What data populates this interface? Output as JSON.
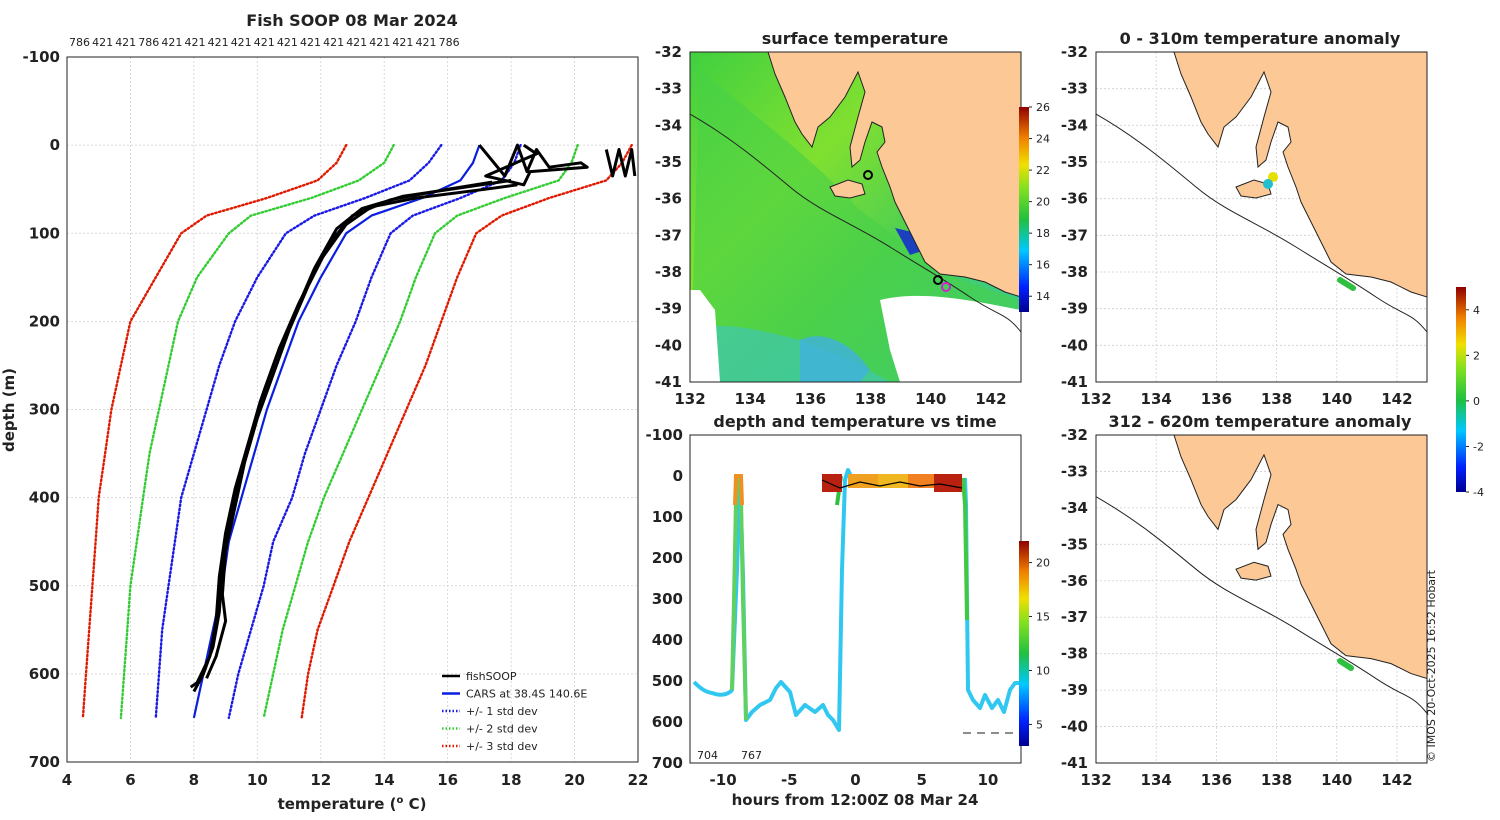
{
  "colors": {
    "fish": "#000000",
    "cars": "#0a1ee0",
    "std1": "#1a1ae6",
    "std2": "#33cc33",
    "std3": "#e01a00",
    "land": "#fbc896",
    "magenta": "#d020d0"
  },
  "chart_data": [
    {
      "id": "profile",
      "type": "line",
      "title": "Fish SOOP 08 Mar 2024",
      "top_labels": [
        "786",
        "421",
        "421",
        "786",
        "421",
        "421",
        "421",
        "421",
        "421",
        "421",
        "421",
        "421",
        "421",
        "421",
        "421",
        "421",
        "786"
      ],
      "xlabel": "temperature (",
      "xlabel_sup": "o",
      "xlabel_end": " C)",
      "ylabel": "depth (m)",
      "xlim": [
        4,
        22
      ],
      "ylim": [
        -100,
        700
      ],
      "xticks": [
        4,
        6,
        8,
        10,
        12,
        14,
        16,
        18,
        20,
        22
      ],
      "yticks": [
        -100,
        0,
        100,
        200,
        300,
        400,
        500,
        600,
        700
      ],
      "legend": [
        {
          "label": "fishSOOP",
          "key": "fish"
        },
        {
          "label": "CARS at 38.4S 140.6E",
          "key": "cars"
        },
        {
          "label": "+/- 1 std dev",
          "key": "std1"
        },
        {
          "label": "+/- 2 std dev",
          "key": "std2"
        },
        {
          "label": "+/- 3 std dev",
          "key": "std3"
        }
      ],
      "series": [
        {
          "name": "CARS",
          "key": "cars",
          "style": "solid",
          "points": [
            [
              17.0,
              0
            ],
            [
              16.8,
              20
            ],
            [
              16.4,
              40
            ],
            [
              15.2,
              60
            ],
            [
              13.6,
              80
            ],
            [
              12.8,
              100
            ],
            [
              12.0,
              150
            ],
            [
              11.3,
              200
            ],
            [
              10.8,
              250
            ],
            [
              10.3,
              300
            ],
            [
              9.9,
              350
            ],
            [
              9.5,
              400
            ],
            [
              9.1,
              450
            ],
            [
              8.9,
              500
            ],
            [
              8.6,
              550
            ],
            [
              8.3,
              600
            ],
            [
              8.0,
              650
            ]
          ]
        },
        {
          "name": "-1 std",
          "key": "std1",
          "style": "dot",
          "points": [
            [
              15.8,
              0
            ],
            [
              15.4,
              20
            ],
            [
              14.8,
              40
            ],
            [
              13.4,
              60
            ],
            [
              11.8,
              80
            ],
            [
              10.9,
              100
            ],
            [
              10.0,
              150
            ],
            [
              9.3,
              200
            ],
            [
              8.8,
              250
            ],
            [
              8.4,
              300
            ],
            [
              8.0,
              350
            ],
            [
              7.6,
              400
            ],
            [
              7.4,
              450
            ],
            [
              7.2,
              500
            ],
            [
              7.0,
              550
            ],
            [
              6.9,
              600
            ],
            [
              6.8,
              650
            ]
          ]
        },
        {
          "name": "+1 std",
          "key": "std1",
          "style": "dot",
          "points": [
            [
              18.3,
              0
            ],
            [
              18.1,
              20
            ],
            [
              17.7,
              40
            ],
            [
              16.4,
              60
            ],
            [
              14.9,
              80
            ],
            [
              14.2,
              100
            ],
            [
              13.6,
              150
            ],
            [
              13.1,
              200
            ],
            [
              12.5,
              250
            ],
            [
              12.0,
              300
            ],
            [
              11.5,
              350
            ],
            [
              11.1,
              400
            ],
            [
              10.5,
              450
            ],
            [
              10.2,
              500
            ],
            [
              9.8,
              550
            ],
            [
              9.4,
              600
            ],
            [
              9.1,
              650
            ]
          ]
        },
        {
          "name": "-2 std",
          "key": "std2",
          "style": "dot",
          "points": [
            [
              14.3,
              0
            ],
            [
              14.0,
              20
            ],
            [
              13.2,
              40
            ],
            [
              11.7,
              60
            ],
            [
              9.8,
              80
            ],
            [
              9.1,
              100
            ],
            [
              8.1,
              150
            ],
            [
              7.5,
              200
            ],
            [
              7.2,
              250
            ],
            [
              6.9,
              300
            ],
            [
              6.6,
              350
            ],
            [
              6.4,
              400
            ],
            [
              6.2,
              450
            ],
            [
              6.0,
              500
            ],
            [
              5.9,
              550
            ],
            [
              5.8,
              600
            ],
            [
              5.7,
              650
            ]
          ]
        },
        {
          "name": "+2 std",
          "key": "std2",
          "style": "dot",
          "points": [
            [
              20.1,
              0
            ],
            [
              19.9,
              20
            ],
            [
              19.5,
              40
            ],
            [
              17.8,
              60
            ],
            [
              16.3,
              80
            ],
            [
              15.6,
              100
            ],
            [
              15.0,
              150
            ],
            [
              14.5,
              200
            ],
            [
              13.9,
              250
            ],
            [
              13.3,
              300
            ],
            [
              12.7,
              350
            ],
            [
              12.1,
              400
            ],
            [
              11.6,
              450
            ],
            [
              11.2,
              500
            ],
            [
              10.8,
              550
            ],
            [
              10.5,
              600
            ],
            [
              10.2,
              650
            ]
          ]
        },
        {
          "name": "-3 std",
          "key": "std3",
          "style": "dot",
          "points": [
            [
              12.8,
              0
            ],
            [
              12.5,
              20
            ],
            [
              11.9,
              40
            ],
            [
              10.3,
              60
            ],
            [
              8.4,
              80
            ],
            [
              7.6,
              100
            ],
            [
              6.8,
              150
            ],
            [
              6.0,
              200
            ],
            [
              5.7,
              250
            ],
            [
              5.4,
              300
            ],
            [
              5.2,
              350
            ],
            [
              5.0,
              400
            ],
            [
              4.9,
              450
            ],
            [
              4.8,
              500
            ],
            [
              4.7,
              550
            ],
            [
              4.6,
              600
            ],
            [
              4.5,
              650
            ]
          ]
        },
        {
          "name": "+3 std",
          "key": "std3",
          "style": "dot",
          "points": [
            [
              21.8,
              0
            ],
            [
              21.5,
              20
            ],
            [
              21.0,
              40
            ],
            [
              19.2,
              60
            ],
            [
              17.7,
              80
            ],
            [
              16.9,
              100
            ],
            [
              16.3,
              150
            ],
            [
              15.8,
              200
            ],
            [
              15.3,
              250
            ],
            [
              14.7,
              300
            ],
            [
              14.1,
              350
            ],
            [
              13.5,
              400
            ],
            [
              12.9,
              450
            ],
            [
              12.4,
              500
            ],
            [
              11.9,
              550
            ],
            [
              11.6,
              600
            ],
            [
              11.4,
              650
            ]
          ]
        },
        {
          "name": "fishSOOP A",
          "key": "fish",
          "style": "solid",
          "points": [
            [
              18.2,
              45
            ],
            [
              17.2,
              50
            ],
            [
              15.0,
              60
            ],
            [
              13.6,
              70
            ],
            [
              12.8,
              90
            ],
            [
              12.0,
              130
            ],
            [
              11.3,
              180
            ],
            [
              10.7,
              230
            ],
            [
              10.2,
              280
            ],
            [
              9.8,
              330
            ],
            [
              9.4,
              380
            ],
            [
              9.1,
              430
            ],
            [
              8.9,
              480
            ],
            [
              8.8,
              530
            ],
            [
              8.6,
              570
            ],
            [
              8.3,
              600
            ],
            [
              8.0,
              620
            ]
          ]
        },
        {
          "name": "fishSOOP B",
          "key": "fish",
          "style": "solid",
          "points": [
            [
              18.0,
              40
            ],
            [
              16.5,
              48
            ],
            [
              14.6,
              58
            ],
            [
              13.3,
              72
            ],
            [
              12.5,
              95
            ],
            [
              11.8,
              140
            ],
            [
              11.2,
              190
            ],
            [
              10.6,
              240
            ],
            [
              10.1,
              290
            ],
            [
              9.7,
              340
            ],
            [
              9.3,
              390
            ],
            [
              9.0,
              440
            ],
            [
              8.8,
              490
            ],
            [
              8.7,
              540
            ],
            [
              8.5,
              580
            ],
            [
              8.1,
              610
            ],
            [
              7.9,
              615
            ]
          ]
        },
        {
          "name": "fishSOOP C",
          "key": "fish",
          "style": "solid",
          "points": [
            [
              17.4,
              42
            ],
            [
              16.0,
              50
            ],
            [
              14.2,
              62
            ],
            [
              13.0,
              80
            ],
            [
              12.3,
              110
            ],
            [
              11.6,
              160
            ],
            [
              11.0,
              210
            ],
            [
              10.5,
              260
            ],
            [
              10.0,
              310
            ],
            [
              9.6,
              360
            ],
            [
              9.3,
              410
            ],
            [
              9.0,
              460
            ],
            [
              8.9,
              510
            ],
            [
              9.0,
              540
            ],
            [
              8.7,
              580
            ],
            [
              8.4,
              605
            ]
          ]
        },
        {
          "name": "fishSOOP surface",
          "key": "fish",
          "style": "solid",
          "points": [
            [
              17.0,
              0
            ],
            [
              17.8,
              35
            ],
            [
              18.2,
              0
            ],
            [
              18.5,
              30
            ],
            [
              18.8,
              5
            ],
            [
              19.2,
              25
            ],
            [
              20.2,
              20
            ],
            [
              20.4,
              25
            ],
            [
              18.6,
              30
            ],
            [
              18.4,
              45
            ],
            [
              17.2,
              35
            ],
            [
              18.8,
              10
            ],
            [
              18.4,
              0
            ]
          ]
        },
        {
          "name": "fishSOOP right",
          "key": "fish",
          "style": "solid",
          "points": [
            [
              21.0,
              5
            ],
            [
              21.2,
              35
            ],
            [
              21.4,
              5
            ],
            [
              21.6,
              35
            ],
            [
              21.8,
              5
            ],
            [
              21.9,
              35
            ]
          ]
        }
      ]
    },
    {
      "id": "sst",
      "type": "heatmap",
      "title": "surface temperature",
      "xlim": [
        132,
        143
      ],
      "ylim": [
        -41,
        -32
      ],
      "xticks": [
        132,
        134,
        136,
        138,
        140,
        142
      ],
      "yticks": [
        -32,
        -33,
        -34,
        -35,
        -36,
        -37,
        -38,
        -39,
        -40,
        -41
      ],
      "colorbar": {
        "min": 13,
        "max": 26,
        "ticks": [
          14,
          16,
          18,
          20,
          22,
          24,
          26
        ]
      }
    },
    {
      "id": "anom1",
      "type": "heatmap",
      "title": "0 - 310m temperature anomaly",
      "xlim": [
        132,
        143
      ],
      "ylim": [
        -41,
        -32
      ],
      "xticks": [
        132,
        134,
        136,
        138,
        140,
        142
      ],
      "yticks": [
        -32,
        -33,
        -34,
        -35,
        -36,
        -37,
        -38,
        -39,
        -40,
        -41
      ],
      "colorbar": {
        "min": -4,
        "max": 5,
        "ticks": [
          -4,
          -2,
          0,
          2,
          4
        ]
      }
    },
    {
      "id": "anom2",
      "type": "heatmap",
      "title": "312 - 620m temperature anomaly",
      "xlim": [
        132,
        143
      ],
      "ylim": [
        -41,
        -32
      ],
      "xticks": [
        132,
        134,
        136,
        138,
        140,
        142
      ],
      "yticks": [
        -32,
        -33,
        -34,
        -35,
        -36,
        -37,
        -38,
        -39,
        -40,
        -41
      ]
    },
    {
      "id": "timeseries",
      "type": "scatter",
      "title": "depth and temperature vs time",
      "xlabel": "hours from 12:00Z 08 Mar 24",
      "xlim": [
        -12.5,
        12.5
      ],
      "ylim": [
        -100,
        700
      ],
      "xticks": [
        -10,
        -5,
        0,
        5,
        10
      ],
      "yticks": [
        -100,
        0,
        100,
        200,
        300,
        400,
        500,
        600,
        700
      ],
      "annotations": [
        "704",
        "767"
      ],
      "colorbar": {
        "min": 3,
        "max": 22,
        "ticks": [
          5,
          10,
          15,
          20
        ]
      }
    }
  ],
  "watermark": "© IMOS 20-Oct-2025 16:52 Hobart"
}
